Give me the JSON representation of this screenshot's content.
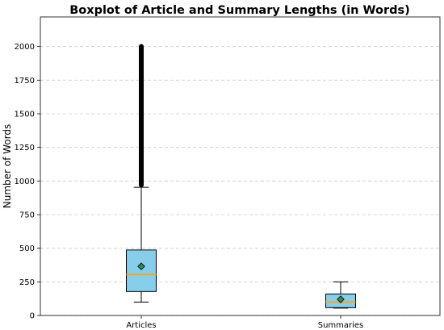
{
  "chart_data": {
    "type": "boxplot",
    "title": "Boxplot of Article and Summary Lengths (in Words)",
    "xlabel": "",
    "ylabel": "Number of Words",
    "ylim": [
      0,
      2220
    ],
    "yticks": [
      0,
      250,
      500,
      750,
      1000,
      1250,
      1500,
      1750,
      2000
    ],
    "grid": "y-dashed",
    "categories": [
      "Articles",
      "Summaries"
    ],
    "boxes": [
      {
        "label": "Articles",
        "whisker_low": 100,
        "q1": 178,
        "median": 305,
        "q3": 487,
        "whisker_high": 953,
        "mean": 365,
        "outliers_range": [
          953,
          2000
        ]
      },
      {
        "label": "Summaries",
        "whisker_low": 55,
        "q1": 58,
        "median": 100,
        "q3": 160,
        "whisker_high": 250,
        "mean": 120,
        "outliers_range": []
      }
    ],
    "colors": {
      "box_fill": "#87ceeb",
      "median": "#f5a623",
      "mean_marker": "#2e8b57",
      "grid": "#cccccc"
    }
  }
}
